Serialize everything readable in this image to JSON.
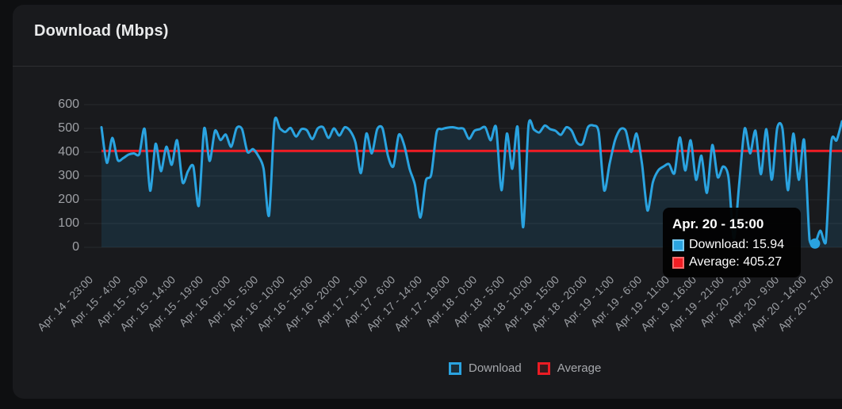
{
  "header": {
    "title": "Download (Mbps)"
  },
  "chart_data": {
    "type": "line",
    "title": "Download (Mbps)",
    "ylabel": "Mbps",
    "ylim": [
      0,
      600
    ],
    "y_ticks": [
      600,
      500,
      400,
      300,
      200,
      100,
      0
    ],
    "grid": "horizontal",
    "legend_position": "bottom",
    "x_labels": [
      "Apr. 14 - 23:00",
      "Apr. 15 - 4:00",
      "Apr. 15 - 9:00",
      "Apr. 15 - 14:00",
      "Apr. 15 - 19:00",
      "Apr. 16 - 0:00",
      "Apr. 16 - 5:00",
      "Apr. 16 - 10:00",
      "Apr. 16 - 15:00",
      "Apr. 16 - 20:00",
      "Apr. 17 - 1:00",
      "Apr. 17 - 6:00",
      "Apr. 17 - 14:00",
      "Apr. 17 - 19:00",
      "Apr. 18 - 0:00",
      "Apr. 18 - 5:00",
      "Apr. 18 - 10:00",
      "Apr. 18 - 15:00",
      "Apr. 18 - 20:00",
      "Apr. 19 - 1:00",
      "Apr. 19 - 6:00",
      "Apr. 19 - 11:00",
      "Apr. 19 - 16:00",
      "Apr. 19 - 21:00",
      "Apr. 20 - 2:00",
      "Apr. 20 - 9:00",
      "Apr. 20 - 14:00",
      "Apr. 20 - 17:00"
    ],
    "series": [
      {
        "name": "Download",
        "color": "#2AA3E0",
        "fill": "rgba(42,163,224,0.13)",
        "values": [
          505,
          355,
          460,
          367,
          375,
          390,
          395,
          392,
          497,
          238,
          435,
          320,
          423,
          347,
          450,
          273,
          320,
          340,
          175,
          500,
          363,
          490,
          451,
          474,
          423,
          501,
          497,
          401,
          413,
          385,
          330,
          134,
          528,
          500,
          485,
          502,
          466,
          497,
          492,
          455,
          500,
          505,
          460,
          500,
          470,
          505,
          490,
          440,
          312,
          478,
          395,
          496,
          500,
          385,
          340,
          473,
          430,
          330,
          262,
          125,
          280,
          306,
          483,
          497,
          503,
          505,
          500,
          498,
          456,
          490,
          497,
          505,
          450,
          505,
          240,
          478,
          330,
          505,
          84,
          513,
          495,
          483,
          512,
          497,
          490,
          473,
          505,
          490,
          440,
          435,
          505,
          512,
          483,
          240,
          350,
          450,
          497,
          490,
          401,
          478,
          350,
          155,
          273,
          323,
          340,
          350,
          312,
          462,
          323,
          450,
          284,
          385,
          229,
          430,
          295,
          340,
          295,
          37,
          273,
          500,
          395,
          490,
          307,
          497,
          284,
          500,
          497,
          240,
          478,
          284,
          450,
          30,
          15.94,
          70,
          20,
          440,
          450,
          530
        ]
      },
      {
        "name": "Average",
        "color": "#EC1C24",
        "style": "horizontal-line",
        "value": 405.27
      }
    ],
    "highlight": {
      "index": 132,
      "x_label": "Apr. 20 - 15:00",
      "download": 15.94,
      "average": 405.27
    }
  },
  "legend": {
    "items": [
      {
        "label": "Download",
        "color": "#2AA3E0",
        "fill": "rgba(42,163,224,0.15)"
      },
      {
        "label": "Average",
        "color": "#EC1C24",
        "fill": "rgba(236,28,36,0.15)"
      }
    ]
  },
  "tooltip": {
    "title": "Apr. 20 - 15:00",
    "rows": [
      {
        "text": "Download: 15.94",
        "color": "#2AA3E0",
        "border": "#7BCBF2"
      },
      {
        "text": "Average: 405.27",
        "color": "#F01D23",
        "border": "#FF6B6B"
      }
    ]
  },
  "colors": {
    "page_bg": "#0E0F11",
    "card_bg": "#191A1D",
    "divider": "#2E2F32",
    "grid": "#26272B",
    "tick_text": "#9EA0A5",
    "title_text": "#E9EAEB",
    "legend_text": "#A6A8AC",
    "tooltip_bg": "#050505",
    "download_line": "#2AA3E0",
    "average_line": "#EC1C24"
  }
}
